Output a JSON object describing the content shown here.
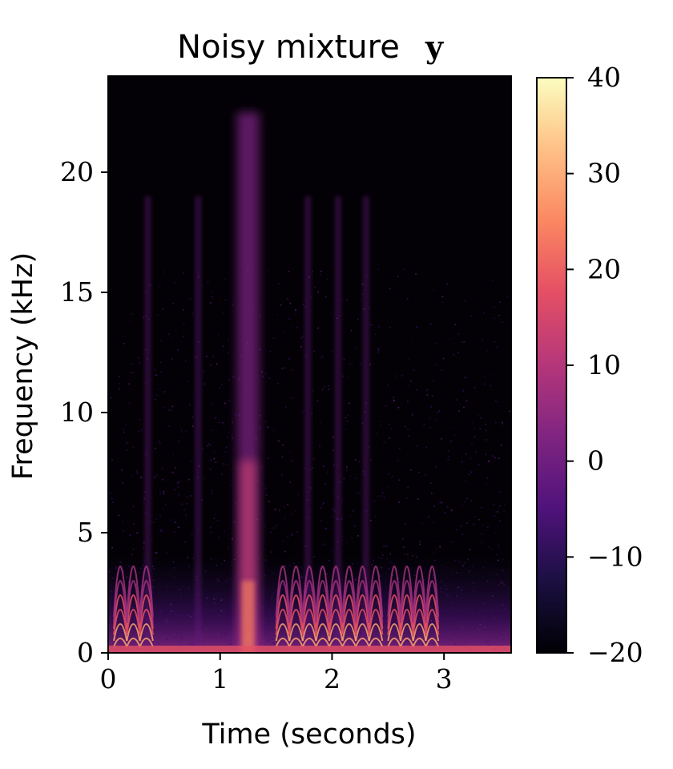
{
  "chart_data": {
    "type": "heatmap",
    "title": "Noisy mixture",
    "title_symbol": "y",
    "xlabel": "Time (seconds)",
    "ylabel": "Frequency (kHz)",
    "xlim": [
      0,
      3.6
    ],
    "ylim": [
      0,
      24
    ],
    "xticks": [
      0,
      1,
      2,
      3
    ],
    "yticks": [
      0,
      5,
      10,
      15,
      20
    ],
    "xtick_labels": [
      "0",
      "1",
      "2",
      "3"
    ],
    "ytick_labels": [
      "0",
      "5",
      "10",
      "15",
      "20"
    ],
    "colormap": "magma",
    "colorbar": {
      "range": [
        -20,
        40
      ],
      "ticks": [
        -20,
        -10,
        0,
        10,
        20,
        30,
        40
      ],
      "tick_labels": [
        "−20",
        "−10",
        "0",
        "10",
        "20",
        "30",
        "40"
      ]
    },
    "grid": false,
    "features": {
      "broadband_burst_s": [
        1.15,
        1.35
      ],
      "narrow_bursts_s": [
        0.35,
        0.8,
        1.78,
        2.05,
        2.3
      ],
      "harmonic_regions_s": [
        [
          0.05,
          0.4
        ],
        [
          1.5,
          2.45
        ],
        [
          2.5,
          2.95
        ]
      ]
    }
  }
}
